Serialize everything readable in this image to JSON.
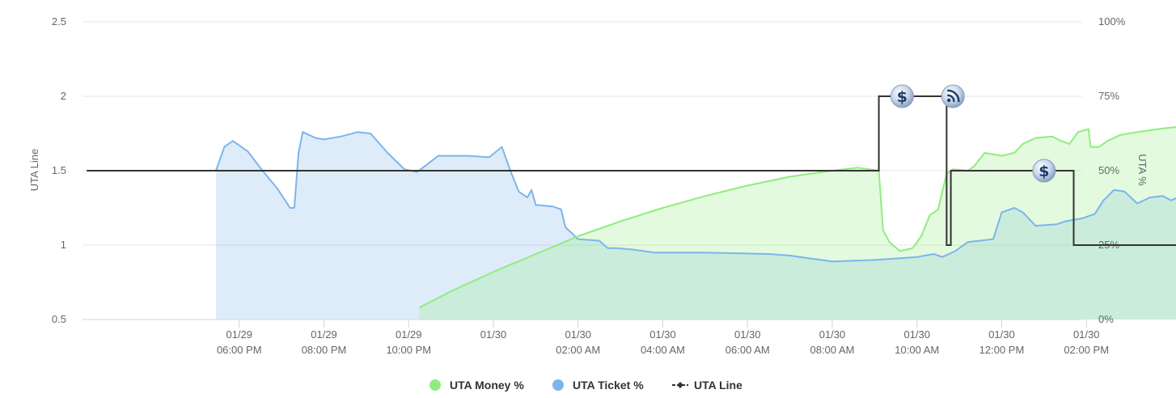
{
  "chart_data": {
    "type": "area",
    "x_tick_labels": [
      [
        "01/29",
        "06:00 PM"
      ],
      [
        "01/29",
        "08:00 PM"
      ],
      [
        "01/29",
        "10:00 PM"
      ],
      [
        "01/30",
        ""
      ],
      [
        "01/30",
        "02:00 AM"
      ],
      [
        "01/30",
        "04:00 AM"
      ],
      [
        "01/30",
        "06:00 AM"
      ],
      [
        "01/30",
        "08:00 AM"
      ],
      [
        "01/30",
        "10:00 AM"
      ],
      [
        "01/30",
        "12:00 PM"
      ],
      [
        "01/30",
        "02:00 PM"
      ]
    ],
    "x_tick_hours": [
      18,
      20,
      22,
      24,
      26,
      28,
      30,
      32,
      34,
      36,
      38
    ],
    "x_range_hours": [
      14.3,
      37.9
    ],
    "left_axis": {
      "label": "UTA Line",
      "ticks": [
        "2.5",
        "2",
        "1.5",
        "1",
        "0.5"
      ],
      "range": [
        0.5,
        2.5
      ]
    },
    "right_axis": {
      "label": "UTA %",
      "ticks": [
        "100%",
        "75%",
        "50%",
        "25%",
        "0%"
      ],
      "range": [
        0,
        100
      ]
    },
    "grid": true,
    "legend_position": "bottom",
    "series": [
      {
        "name": "UTA Money %",
        "type": "area",
        "axis": "right",
        "color": "#90ed7d",
        "points": [
          [
            22.25,
            4
          ],
          [
            23,
            9.5
          ],
          [
            24,
            16
          ],
          [
            25,
            22
          ],
          [
            26,
            28
          ],
          [
            27,
            33
          ],
          [
            28,
            37.5
          ],
          [
            29,
            41.5
          ],
          [
            30,
            45
          ],
          [
            31,
            48
          ],
          [
            32,
            50
          ],
          [
            32.6,
            51
          ],
          [
            33.1,
            50
          ],
          [
            33.2,
            30
          ],
          [
            33.35,
            26
          ],
          [
            33.6,
            23
          ],
          [
            33.9,
            24
          ],
          [
            34.1,
            28
          ],
          [
            34.3,
            35
          ],
          [
            34.5,
            37
          ],
          [
            34.7,
            49
          ],
          [
            34.85,
            50.5
          ],
          [
            35.2,
            50
          ],
          [
            35.35,
            51.5
          ],
          [
            35.6,
            56
          ],
          [
            36,
            55
          ],
          [
            36.3,
            56
          ],
          [
            36.5,
            59
          ],
          [
            36.8,
            61
          ],
          [
            37.2,
            61.5
          ],
          [
            37.4,
            60
          ],
          [
            37.6,
            59
          ],
          [
            37.8,
            63
          ],
          [
            38.05,
            64
          ],
          [
            38.1,
            58
          ],
          [
            38.3,
            58
          ],
          [
            38.5,
            60
          ],
          [
            38.8,
            62
          ],
          [
            39.2,
            63
          ],
          [
            39.7,
            64
          ],
          [
            40.0,
            64.5
          ],
          [
            40.5,
            65
          ],
          [
            40.9,
            65
          ]
        ]
      },
      {
        "name": "UTA Ticket %",
        "type": "area",
        "axis": "right",
        "color": "#7cb5ec",
        "points": [
          [
            17.45,
            50
          ],
          [
            17.65,
            58
          ],
          [
            17.85,
            60
          ],
          [
            18.2,
            56.5
          ],
          [
            18.55,
            50
          ],
          [
            18.9,
            44
          ],
          [
            19.2,
            37.5
          ],
          [
            19.3,
            37.5
          ],
          [
            19.4,
            56
          ],
          [
            19.5,
            63
          ],
          [
            19.8,
            61
          ],
          [
            20.0,
            60.5
          ],
          [
            20.4,
            61.5
          ],
          [
            20.8,
            63
          ],
          [
            21.1,
            62.5
          ],
          [
            21.5,
            56
          ],
          [
            21.9,
            50.5
          ],
          [
            22.2,
            49.5
          ],
          [
            22.7,
            55
          ],
          [
            23.4,
            55
          ],
          [
            23.9,
            54.5
          ],
          [
            24.2,
            58
          ],
          [
            24.4,
            50
          ],
          [
            24.6,
            43
          ],
          [
            24.8,
            41
          ],
          [
            24.9,
            43.5
          ],
          [
            25.0,
            38.5
          ],
          [
            25.4,
            38
          ],
          [
            25.6,
            37
          ],
          [
            25.7,
            31
          ],
          [
            26.0,
            27
          ],
          [
            26.5,
            26.5
          ],
          [
            26.7,
            24
          ],
          [
            26.9,
            24
          ],
          [
            27.3,
            23.5
          ],
          [
            27.8,
            22.5
          ],
          [
            29.0,
            22.5
          ],
          [
            30.5,
            22
          ],
          [
            31.0,
            21.5
          ],
          [
            31.5,
            20.5
          ],
          [
            32.0,
            19.5
          ],
          [
            33.0,
            20
          ],
          [
            34.0,
            21
          ],
          [
            34.4,
            22
          ],
          [
            34.6,
            21
          ],
          [
            34.9,
            23
          ],
          [
            35.2,
            26
          ],
          [
            35.8,
            27
          ],
          [
            36.0,
            36
          ],
          [
            36.3,
            37.5
          ],
          [
            36.5,
            36
          ],
          [
            36.8,
            31.5
          ],
          [
            37.3,
            32
          ],
          [
            37.5,
            33
          ],
          [
            37.9,
            34
          ],
          [
            38.2,
            35.5
          ],
          [
            38.4,
            40
          ],
          [
            38.65,
            43.5
          ],
          [
            38.9,
            43
          ],
          [
            39.2,
            39
          ],
          [
            39.5,
            41
          ],
          [
            39.8,
            41.5
          ],
          [
            40.0,
            40
          ],
          [
            40.3,
            42
          ],
          [
            40.9,
            43
          ]
        ]
      },
      {
        "name": "UTA Line",
        "type": "step-line",
        "axis": "left",
        "color": "#333333",
        "points": [
          [
            14.4,
            1.5
          ],
          [
            33.1,
            1.5
          ],
          [
            33.1,
            2.0
          ],
          [
            34.7,
            2.0
          ],
          [
            34.7,
            1.0
          ],
          [
            34.8,
            1.0
          ],
          [
            34.8,
            1.5
          ],
          [
            37.7,
            1.5
          ],
          [
            37.7,
            1.0
          ],
          [
            40.9,
            1.0
          ]
        ]
      }
    ],
    "flags": [
      {
        "icon": "dollar-icon",
        "x": 33.65,
        "y": 2.0
      },
      {
        "icon": "rss-icon",
        "x": 34.85,
        "y": 2.0
      },
      {
        "icon": "dollar-icon",
        "x": 37.0,
        "y": 1.5
      }
    ]
  }
}
